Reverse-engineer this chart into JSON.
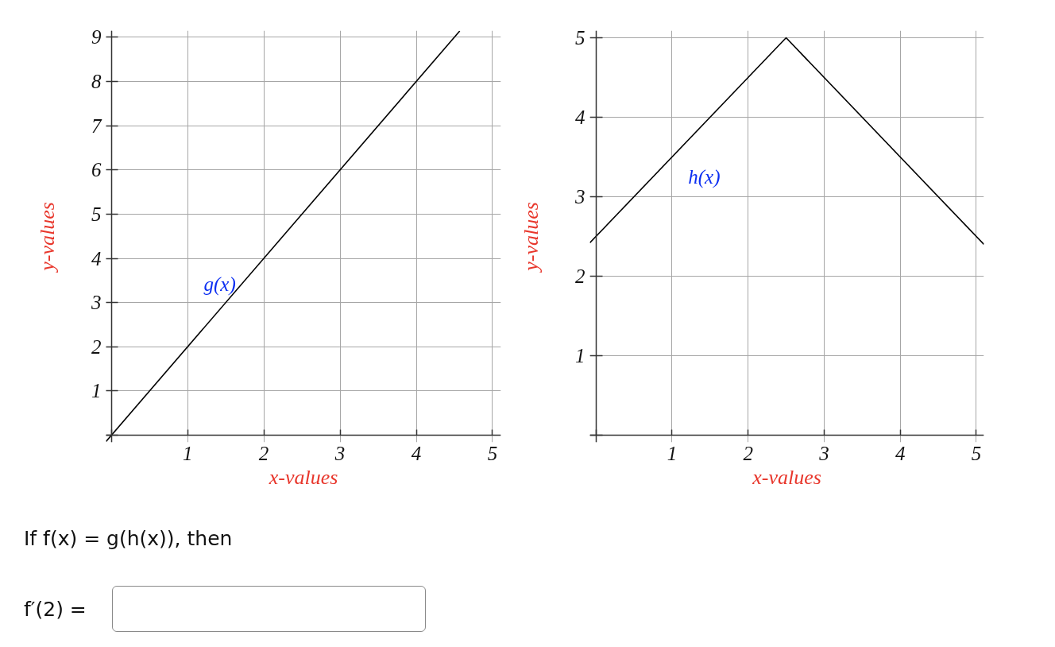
{
  "chart_data": [
    {
      "type": "line",
      "xlabel": "x-values",
      "ylabel": "y-values",
      "xlim": [
        -0.07,
        5.11
      ],
      "ylim": [
        -0.16,
        9.15
      ],
      "xticks": [
        {
          "value": 0,
          "label": null
        },
        1,
        2,
        3,
        4,
        5
      ],
      "yticks": [
        {
          "value": 0,
          "label": null
        },
        1,
        2,
        3,
        4,
        5,
        6,
        7,
        8,
        9
      ],
      "grid": true,
      "series": [
        {
          "color": "#000000",
          "x": [
            -0.07,
            4.57
          ],
          "values": [
            -0.14,
            9.14
          ]
        }
      ],
      "annotations": [
        "g(x)"
      ]
    },
    {
      "type": "line",
      "xlabel": "x-values",
      "ylabel": "y-values",
      "xlim": [
        -0.08,
        5.1
      ],
      "ylim": [
        -0.09,
        5.09
      ],
      "xticks": [
        {
          "value": 0,
          "label": null
        },
        1,
        2,
        3,
        4,
        5
      ],
      "yticks": [
        {
          "value": 0,
          "label": null
        },
        1,
        2,
        3,
        4,
        5
      ],
      "grid": true,
      "series": [
        {
          "color": "#000000",
          "x": [
            -0.08,
            2.5,
            5.1
          ],
          "values": [
            2.42,
            5,
            2.4
          ]
        }
      ],
      "annotations": [
        "h(x)"
      ]
    },
    {
      "type": "other",
      "annotations": [
        "If f(x) = g(h(x)), then",
        "f′(2) ="
      ]
    }
  ]
}
